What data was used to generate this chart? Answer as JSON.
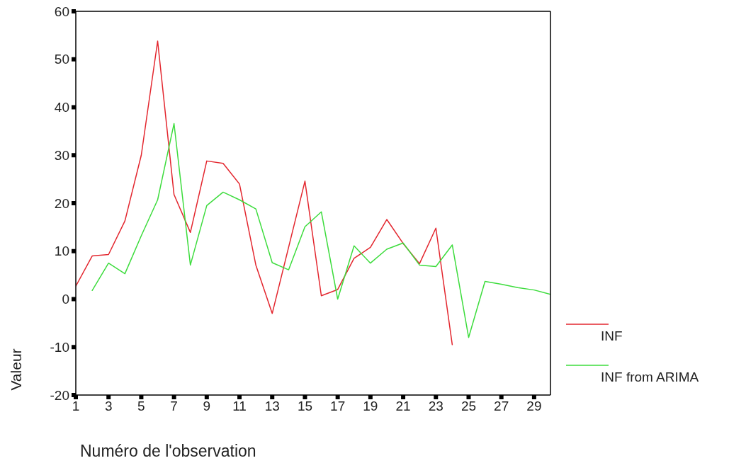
{
  "chart_data": {
    "type": "line",
    "xlabel": "Numéro de l'observation",
    "ylabel": "Valeur",
    "x": [
      1,
      2,
      3,
      4,
      5,
      6,
      7,
      8,
      9,
      10,
      11,
      12,
      13,
      14,
      15,
      16,
      17,
      18,
      19,
      20,
      21,
      22,
      23,
      24,
      25,
      26,
      27,
      28,
      29,
      30
    ],
    "series": [
      {
        "name": "INF",
        "color": "#e3262e",
        "values": [
          2.7,
          9.0,
          9.3,
          16.3,
          30.0,
          53.8,
          21.8,
          13.9,
          28.8,
          28.3,
          24.0,
          7.1,
          -3.0,
          10.8,
          24.6,
          0.7,
          2.0,
          8.5,
          10.8,
          16.6,
          11.6,
          7.4,
          14.8,
          -9.5,
          null,
          null,
          null,
          null,
          null,
          null
        ]
      },
      {
        "name": "INF from ARIMA",
        "color": "#3ddc3d",
        "values": [
          null,
          1.8,
          7.5,
          5.3,
          13.2,
          20.7,
          36.6,
          7.1,
          19.5,
          22.3,
          20.7,
          18.8,
          7.6,
          6.1,
          15.1,
          18.2,
          0.0,
          11.1,
          7.5,
          10.4,
          11.7,
          7.1,
          6.8,
          11.3,
          -8.0,
          3.7,
          3.1,
          2.4,
          1.9,
          1.0
        ]
      }
    ],
    "xlim": [
      1,
      30
    ],
    "ylim": [
      -20,
      60
    ],
    "xticks": [
      1,
      3,
      5,
      7,
      9,
      11,
      13,
      15,
      17,
      19,
      21,
      23,
      25,
      27,
      29
    ],
    "yticks": [
      -20,
      -10,
      0,
      10,
      20,
      30,
      40,
      50,
      60
    ],
    "grid": false,
    "legend": "right",
    "marker": "none",
    "line_style": "solid"
  }
}
